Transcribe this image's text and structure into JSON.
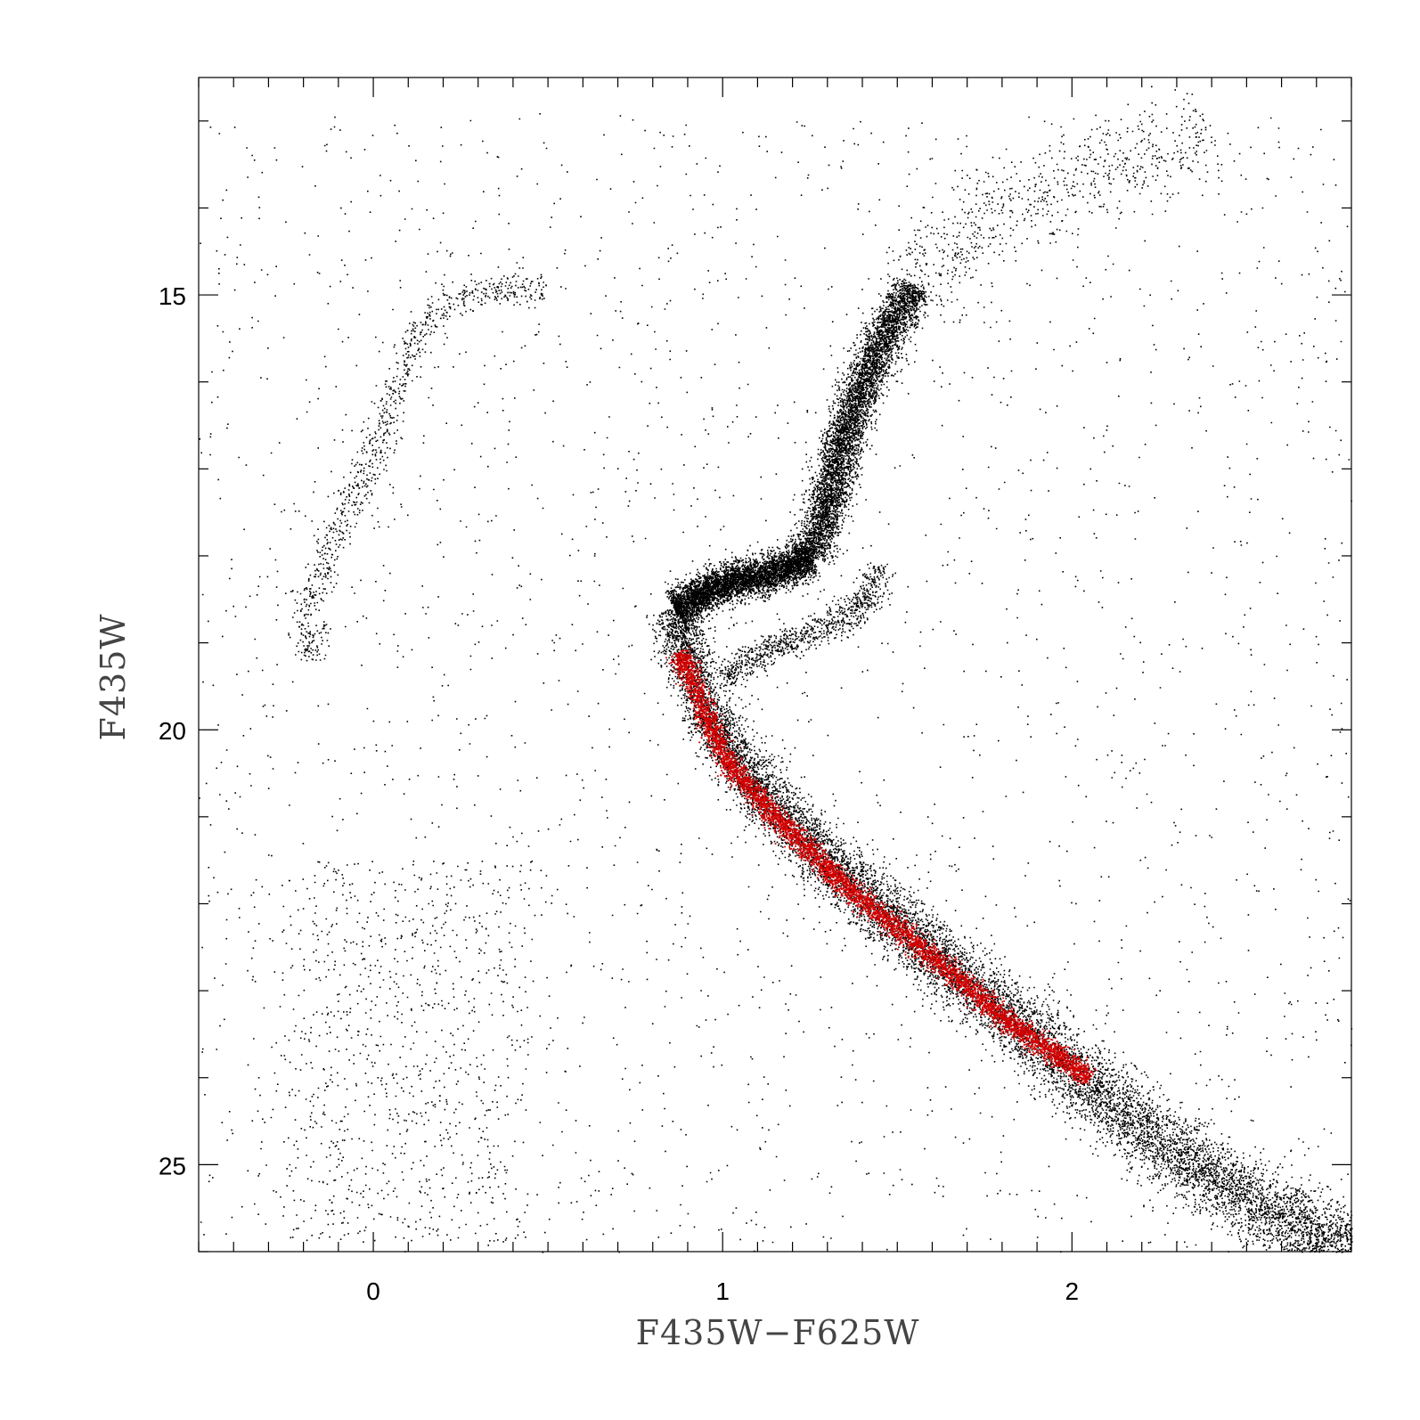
{
  "chart_data": {
    "type": "scatter",
    "title": "",
    "xlabel": "F435W−F625W",
    "ylabel": "F435W",
    "xlim": [
      -0.5,
      2.8
    ],
    "ylim": [
      26.0,
      12.5
    ],
    "y_inverted": true,
    "x_ticks": [
      0,
      1,
      2
    ],
    "x_tick_labels": [
      "0",
      "1",
      "2"
    ],
    "y_ticks": [
      15,
      20,
      25
    ],
    "y_tick_labels": [
      "15",
      "20",
      "25"
    ],
    "x_minor_step": 0.1,
    "y_minor_step": 1,
    "grid": false,
    "legend": "none",
    "series": [
      {
        "color": "#000000",
        "ridges": [
          {
            "part": "main-sequence",
            "points": [
              [
                0.86,
                18.6
              ],
              [
                0.9,
                19.2
              ],
              [
                0.98,
                20.0
              ],
              [
                1.15,
                20.9
              ],
              [
                1.4,
                21.9
              ],
              [
                1.7,
                22.9
              ],
              [
                2.0,
                23.9
              ],
              [
                2.3,
                24.9
              ],
              [
                2.6,
                25.6
              ],
              [
                2.8,
                26.0
              ]
            ]
          },
          {
            "part": "subgiant-branch",
            "points": [
              [
                0.86,
                18.6
              ],
              [
                1.0,
                18.3
              ],
              [
                1.15,
                18.2
              ],
              [
                1.25,
                18.0
              ]
            ]
          },
          {
            "part": "red-giant-branch",
            "points": [
              [
                1.25,
                18.0
              ],
              [
                1.3,
                17.4
              ],
              [
                1.35,
                16.6
              ],
              [
                1.42,
                15.8
              ],
              [
                1.5,
                15.2
              ],
              [
                1.55,
                14.9
              ]
            ]
          },
          {
            "part": "asymptotic-giant-branch",
            "points": [
              [
                1.55,
                14.9
              ],
              [
                1.7,
                14.2
              ],
              [
                1.9,
                13.8
              ],
              [
                2.1,
                13.5
              ],
              [
                2.4,
                13.2
              ]
            ]
          },
          {
            "part": "horizontal-branch",
            "points": [
              [
                -0.17,
                19.2
              ],
              [
                -0.2,
                18.6
              ],
              [
                -0.12,
                17.8
              ],
              [
                -0.02,
                17.0
              ],
              [
                0.05,
                16.2
              ],
              [
                0.12,
                15.5
              ],
              [
                0.2,
                15.1
              ],
              [
                0.35,
                14.9
              ],
              [
                0.5,
                14.95
              ]
            ]
          },
          {
            "part": "binary-sequence",
            "points": [
              [
                1.0,
                19.4
              ],
              [
                1.1,
                19.1
              ],
              [
                1.25,
                18.9
              ],
              [
                1.4,
                18.6
              ],
              [
                1.45,
                18.1
              ]
            ]
          }
        ]
      },
      {
        "color": "#d40000",
        "ridges": [
          {
            "part": "fiducial-main-sequence",
            "points": [
              [
                0.87,
                19.1
              ],
              [
                0.92,
                19.5
              ],
              [
                1.0,
                20.3
              ],
              [
                1.15,
                21.0
              ],
              [
                1.35,
                21.8
              ],
              [
                1.6,
                22.6
              ],
              [
                1.8,
                23.3
              ],
              [
                2.05,
                24.0
              ]
            ]
          }
        ]
      }
    ]
  }
}
